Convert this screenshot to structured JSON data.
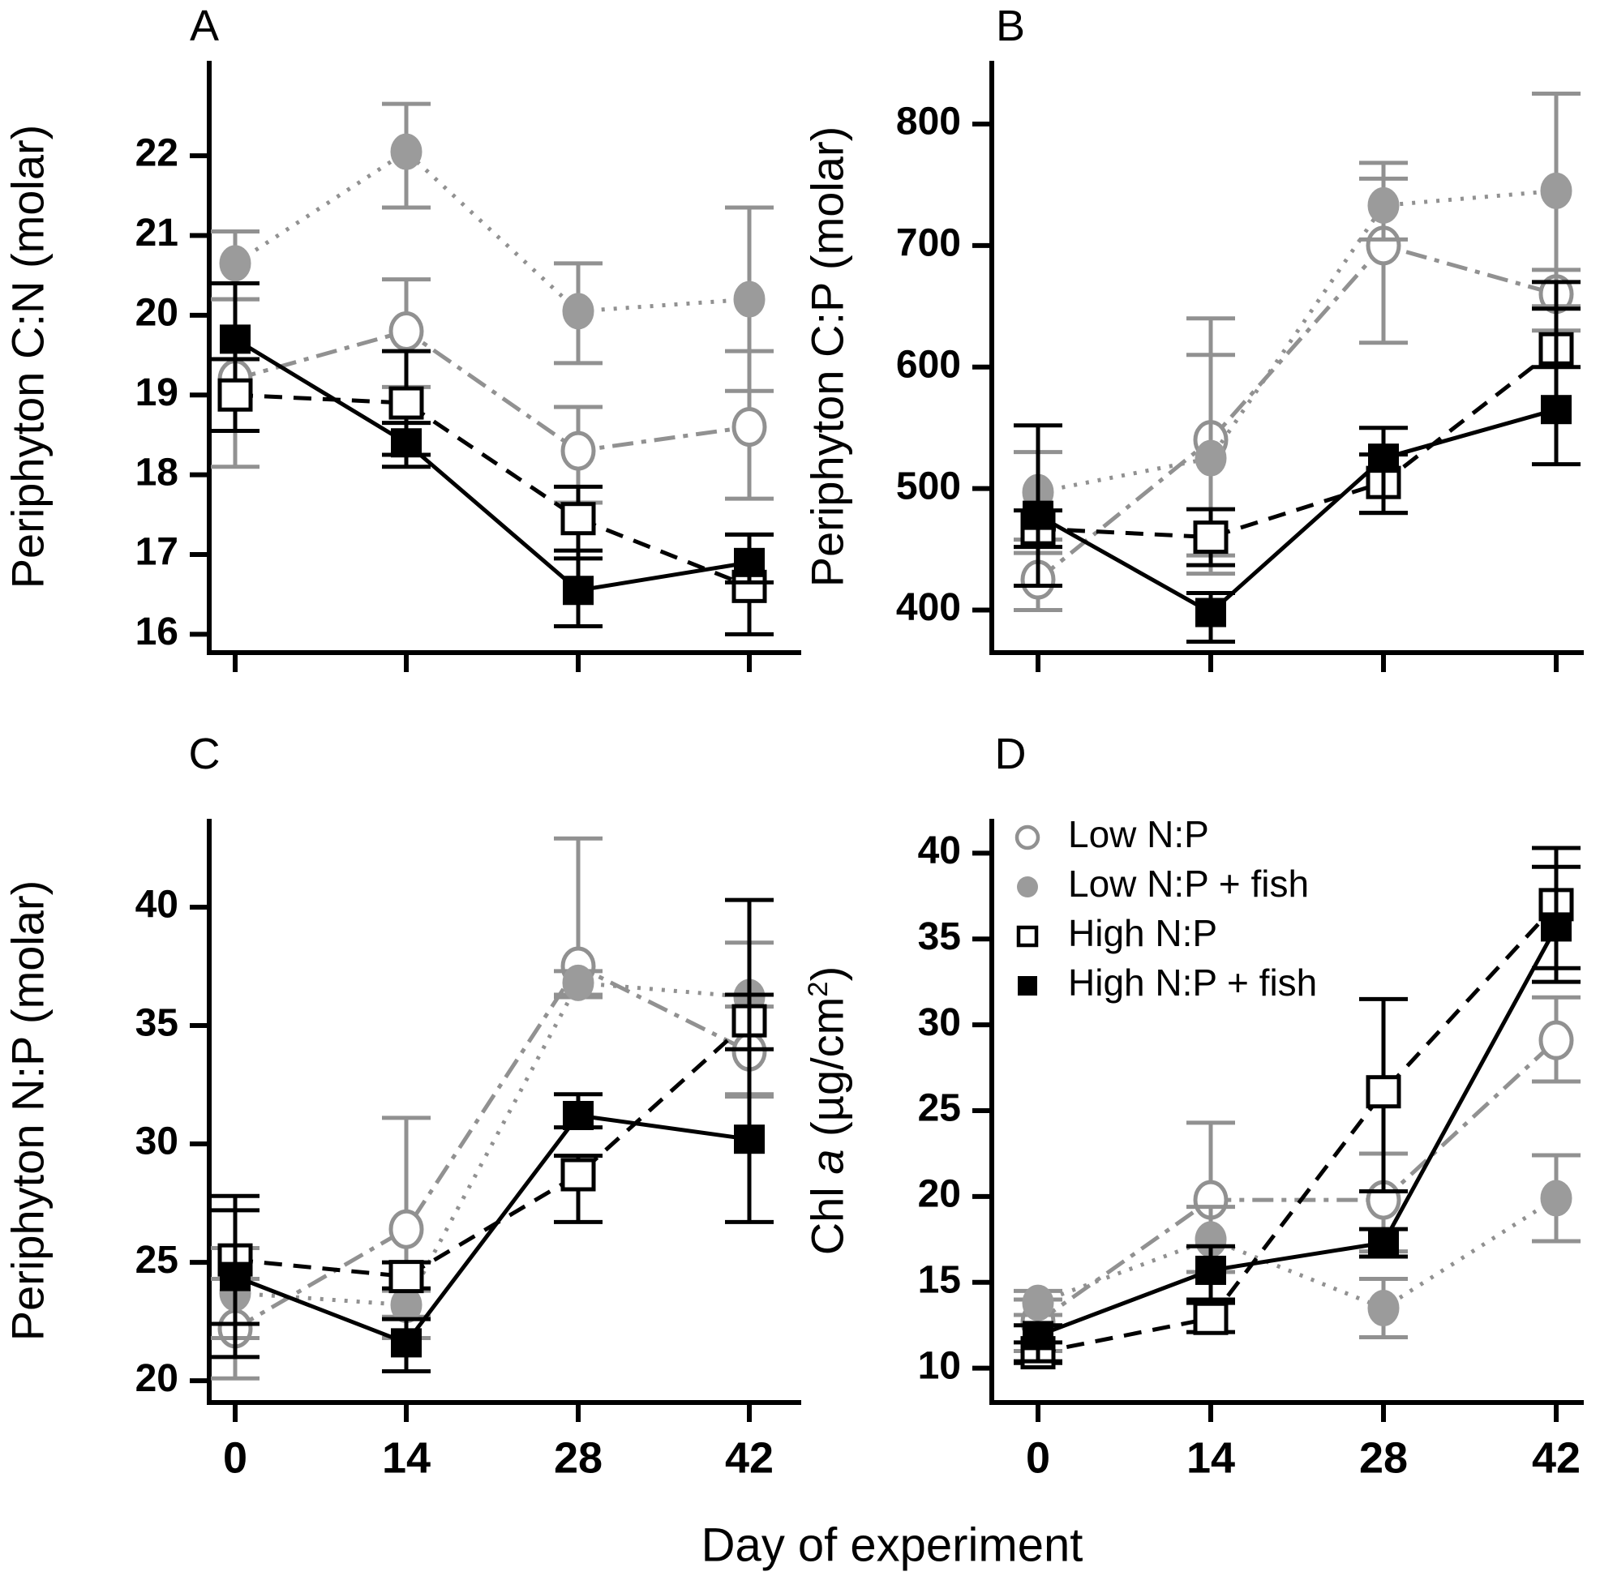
{
  "figure": {
    "background": "#ffffff"
  },
  "colors": {
    "black": "#000000",
    "gray": "#919191",
    "gray_fill": "#9b9b9b",
    "white": "#ffffff"
  },
  "xlabel": "Day of experiment",
  "chart_data": {
    "type": "line",
    "x": [
      0,
      14,
      28,
      42
    ],
    "x_tick_labels": [
      "0",
      "14",
      "28",
      "42"
    ],
    "xlabel": "Day of experiment",
    "grid": false,
    "legend_position": "inside-panel-D-top-left",
    "series_styles": {
      "low_np": {
        "label": "Low N:P",
        "color": "gray",
        "marker": "circle-open",
        "line": "dashdot"
      },
      "low_np_fish": {
        "label": "Low N:P + fish",
        "color": "gray",
        "marker": "circle-filled",
        "line": "dotted"
      },
      "high_np": {
        "label": "High N:P",
        "color": "black",
        "marker": "square-open",
        "line": "dashed"
      },
      "high_np_fish": {
        "label": "High N:P + fish",
        "color": "black",
        "marker": "square-filled",
        "line": "solid"
      }
    },
    "legend_items": [
      "low_np",
      "low_np_fish",
      "high_np",
      "high_np_fish"
    ],
    "panels": [
      {
        "label": "A",
        "ylabel": "Periphyton C:N (molar)",
        "ylim": [
          15.77,
          23.19
        ],
        "yticks": [
          16,
          17,
          18,
          19,
          20,
          21,
          22
        ],
        "show_x_tick_labels": false,
        "show_legend": false,
        "series": [
          {
            "key": "low_np",
            "values": [
              19.2,
              19.8,
              18.3,
              18.6
            ],
            "err_lo": [
              18.1,
              19.1,
              17.65,
              17.7
            ],
            "err_hi": [
              20.2,
              20.45,
              18.85,
              19.55
            ]
          },
          {
            "key": "low_np_fish",
            "values": [
              20.65,
              22.05,
              20.05,
              20.2
            ],
            "err_lo": [
              20.2,
              21.35,
              19.4,
              19.05
            ],
            "err_hi": [
              21.05,
              22.65,
              20.65,
              21.35
            ]
          },
          {
            "key": "high_np",
            "values": [
              19.0,
              18.9,
              17.45,
              16.6
            ],
            "err_lo": [
              18.55,
              18.25,
              16.95,
              16.0
            ],
            "err_hi": [
              19.45,
              19.55,
              17.85,
              17.25
            ]
          },
          {
            "key": "high_np_fish",
            "values": [
              19.7,
              18.4,
              16.55,
              16.9
            ],
            "err_lo": [
              19.45,
              18.1,
              16.1,
              16.65
            ],
            "err_hi": [
              20.4,
              18.65,
              17.05,
              17.25
            ]
          }
        ]
      },
      {
        "label": "B",
        "ylabel": "Periphyton C:P (molar)",
        "ylim": [
          365,
          852
        ],
        "yticks": [
          400,
          500,
          600,
          700,
          800
        ],
        "show_x_tick_labels": false,
        "show_legend": false,
        "series": [
          {
            "key": "low_np",
            "values": [
              425,
              540,
              700,
              660
            ],
            "err_lo": [
              400,
              445,
              620,
              630
            ],
            "err_hi": [
              447,
              640,
              755,
              680
            ]
          },
          {
            "key": "low_np_fish",
            "values": [
              497,
              525,
              733,
              745
            ],
            "err_lo": [
              458,
              430,
              705,
              650
            ],
            "err_hi": [
              530,
              610,
              768,
              825
            ]
          },
          {
            "key": "high_np",
            "values": [
              467,
              460,
              505,
              615
            ],
            "err_lo": [
              452,
              437,
              480,
              600
            ],
            "err_hi": [
              482,
              483,
              528,
              670
            ]
          },
          {
            "key": "high_np_fish",
            "values": [
              478,
              398,
              525,
              565
            ],
            "err_lo": [
              420,
              374,
              480,
              520
            ],
            "err_hi": [
              552,
              414,
              550,
              648
            ]
          }
        ]
      },
      {
        "label": "C",
        "ylabel": "Periphyton N:P (molar)",
        "ylim": [
          19.08,
          43.73
        ],
        "yticks": [
          20,
          25,
          30,
          35,
          40
        ],
        "show_x_tick_labels": true,
        "show_legend": false,
        "series": [
          {
            "key": "low_np",
            "values": [
              22.2,
              26.4,
              37.5,
              33.9
            ],
            "err_lo": [
              20.1,
              21.8,
              36.2,
              32.0
            ],
            "err_hi": [
              24.3,
              31.1,
              42.9,
              35.8
            ]
          },
          {
            "key": "low_np_fish",
            "values": [
              23.7,
              23.2,
              36.8,
              36.2
            ],
            "err_lo": [
              21.8,
              22.7,
              36.3,
              32.1
            ],
            "err_hi": [
              25.6,
              23.8,
              37.3,
              38.5
            ]
          },
          {
            "key": "high_np",
            "values": [
              25.1,
              24.4,
              28.7,
              35.2
            ],
            "err_lo": [
              22.4,
              23.9,
              26.7,
              34.0
            ],
            "err_hi": [
              27.8,
              25.0,
              29.5,
              36.3
            ]
          },
          {
            "key": "high_np_fish",
            "values": [
              24.4,
              21.6,
              31.2,
              30.2
            ],
            "err_lo": [
              21.0,
              20.4,
              30.7,
              26.7
            ],
            "err_hi": [
              27.2,
              22.6,
              32.1,
              40.3
            ]
          }
        ]
      },
      {
        "label": "D",
        "ylabel": "Chl a (µg/cm2)",
        "ylabel_parts": [
          {
            "t": "Chl "
          },
          {
            "t": "a",
            "i": true
          },
          {
            "t": " (µg/cm"
          },
          {
            "t": "2",
            "sup": true
          },
          {
            "t": ")"
          }
        ],
        "ylim": [
          8.0,
          42.0
        ],
        "yticks": [
          10,
          15,
          20,
          25,
          30,
          35,
          40
        ],
        "show_x_tick_labels": true,
        "show_legend": true,
        "series": [
          {
            "key": "low_np",
            "values": [
              12.7,
              19.8,
              19.8,
              29.1
            ],
            "err_lo": [
              11.0,
              15.6,
              16.8,
              26.7
            ],
            "err_hi": [
              14.0,
              24.3,
              22.5,
              31.6
            ]
          },
          {
            "key": "low_np_fish",
            "values": [
              13.8,
              17.5,
              13.5,
              19.9
            ],
            "err_lo": [
              13.1,
              15.6,
              11.8,
              17.4
            ],
            "err_hi": [
              14.5,
              19.4,
              15.2,
              22.4
            ]
          },
          {
            "key": "high_np",
            "values": [
              10.9,
              12.9,
              26.1,
              37.0
            ],
            "err_lo": [
              10.3,
              12.1,
              20.3,
              33.3
            ],
            "err_hi": [
              11.5,
              13.8,
              31.5,
              40.3
            ]
          },
          {
            "key": "high_np_fish",
            "values": [
              11.9,
              15.7,
              17.3,
              35.7
            ],
            "err_lo": [
              10.4,
              14.0,
              16.5,
              32.5
            ],
            "err_hi": [
              12.5,
              17.1,
              18.1,
              39.2
            ]
          }
        ]
      }
    ]
  }
}
